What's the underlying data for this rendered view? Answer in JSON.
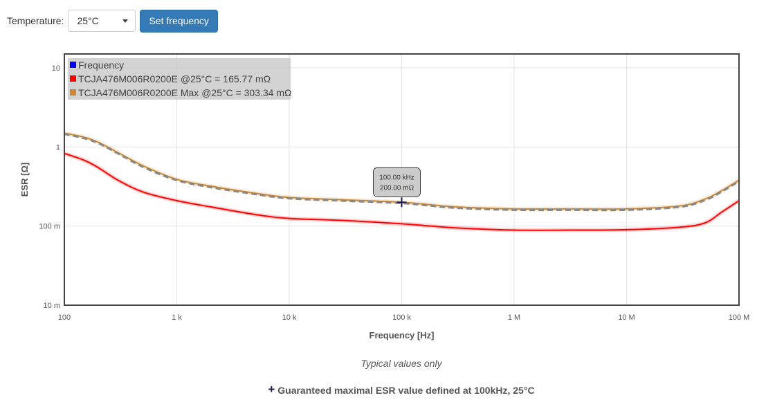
{
  "controls": {
    "temperature_label": "Temperature:",
    "temperature_value": "25°C",
    "set_button_label": "Set frequency"
  },
  "chart_data": {
    "type": "line",
    "xscale": "log",
    "yscale": "log",
    "xlabel": "Frequency [Hz]",
    "ylabel": "ESR [Ω]",
    "xlim": [
      100,
      100000000
    ],
    "ylim": [
      0.01,
      15
    ],
    "grid": true,
    "legend_position": "top-left",
    "x_ticks": [
      {
        "value": 100,
        "label": "100"
      },
      {
        "value": 1000,
        "label": "1 k"
      },
      {
        "value": 10000,
        "label": "10 k"
      },
      {
        "value": 100000,
        "label": "100 k"
      },
      {
        "value": 1000000,
        "label": "1 M"
      },
      {
        "value": 10000000,
        "label": "10 M"
      },
      {
        "value": 100000000,
        "label": "100 M"
      }
    ],
    "y_ticks": [
      {
        "value": 10,
        "label": "10"
      },
      {
        "value": 1,
        "label": "1"
      },
      {
        "value": 0.1,
        "label": "100 m"
      },
      {
        "value": 0.01,
        "label": "10 m"
      }
    ],
    "legend": [
      {
        "label": "Frequency",
        "color": "#0000ff"
      },
      {
        "label": "TCJA476M006R0200E @25°C = 165.77 mΩ",
        "color": "#ff0000"
      },
      {
        "label": "TCJA476M006R0200E Max @25°C = 303.34 mΩ",
        "color": "#cc8833"
      }
    ],
    "series": [
      {
        "name": "TCJA476M006R0200E @25°C = 165.77 mΩ",
        "color": "#ff0000",
        "style": "solid",
        "points": [
          [
            100,
            0.83
          ],
          [
            150,
            0.68
          ],
          [
            200,
            0.55
          ],
          [
            300,
            0.38
          ],
          [
            500,
            0.27
          ],
          [
            1000,
            0.21
          ],
          [
            2000,
            0.175
          ],
          [
            5000,
            0.14
          ],
          [
            10000,
            0.125
          ],
          [
            30000,
            0.118
          ],
          [
            100000,
            0.107
          ],
          [
            300000,
            0.095
          ],
          [
            1000000,
            0.089
          ],
          [
            3000000,
            0.089
          ],
          [
            10000000,
            0.09
          ],
          [
            30000000,
            0.097
          ],
          [
            50000000,
            0.11
          ],
          [
            70000000,
            0.15
          ],
          [
            100000000,
            0.21
          ]
        ]
      },
      {
        "name": "TCJA476M006R0200E Max @25°C = 303.34 mΩ",
        "color": "#cc8833",
        "style": "solid",
        "points": [
          [
            100,
            1.5
          ],
          [
            150,
            1.33
          ],
          [
            200,
            1.15
          ],
          [
            300,
            0.85
          ],
          [
            500,
            0.58
          ],
          [
            1000,
            0.39
          ],
          [
            2000,
            0.32
          ],
          [
            5000,
            0.26
          ],
          [
            10000,
            0.23
          ],
          [
            30000,
            0.215
          ],
          [
            100000,
            0.2
          ],
          [
            300000,
            0.175
          ],
          [
            1000000,
            0.165
          ],
          [
            3000000,
            0.165
          ],
          [
            10000000,
            0.165
          ],
          [
            30000000,
            0.18
          ],
          [
            50000000,
            0.22
          ],
          [
            70000000,
            0.28
          ],
          [
            100000000,
            0.38
          ]
        ]
      },
      {
        "name": "",
        "color": "#888888",
        "style": "dashed",
        "points": [
          [
            100,
            1.46
          ],
          [
            150,
            1.29
          ],
          [
            200,
            1.12
          ],
          [
            300,
            0.83
          ],
          [
            500,
            0.56
          ],
          [
            1000,
            0.38
          ],
          [
            2000,
            0.31
          ],
          [
            5000,
            0.253
          ],
          [
            10000,
            0.224
          ],
          [
            30000,
            0.209
          ],
          [
            100000,
            0.195
          ],
          [
            300000,
            0.17
          ],
          [
            1000000,
            0.16
          ],
          [
            3000000,
            0.16
          ],
          [
            10000000,
            0.16
          ],
          [
            30000000,
            0.175
          ],
          [
            50000000,
            0.213
          ],
          [
            70000000,
            0.272
          ],
          [
            100000000,
            0.37
          ]
        ]
      }
    ],
    "marker": {
      "x": 100000,
      "y": 0.2,
      "symbol": "+"
    },
    "tooltip": {
      "line1": "100.00 kHz",
      "line2": "200.00 mΩ"
    }
  },
  "notes": {
    "typical": "Typical values only",
    "guaranteed_symbol": "+",
    "guaranteed": "Guaranteed maximal ESR value defined at 100kHz, 25°C"
  }
}
